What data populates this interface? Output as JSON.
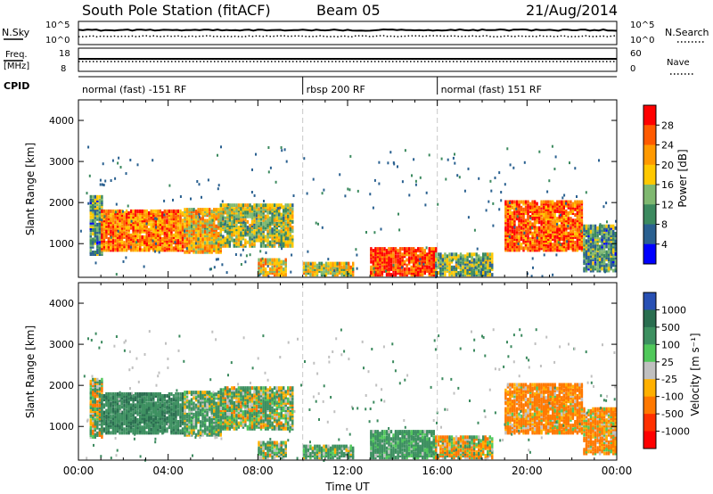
{
  "header": {
    "station": "South Pole Station (fitACF)",
    "beam": "Beam 05",
    "date": "21/Aug/2014"
  },
  "noise_panel": {
    "left_label": "N.Sky",
    "right_label": "N.Search",
    "y_ticks": [
      "10^5",
      "10^0"
    ]
  },
  "freq_panel": {
    "left_label_1": "Freq.",
    "left_label_2": "[MHz]",
    "right_label": "Nave",
    "left_ticks": [
      "18",
      "8"
    ],
    "right_ticks": [
      "60",
      "0"
    ]
  },
  "cpid": {
    "label": "CPID",
    "segments": [
      {
        "name": "normal (fast) -151 RF",
        "start_h": 0,
        "end_h": 10
      },
      {
        "name": "rbsp 200 RF",
        "start_h": 10,
        "end_h": 16
      },
      {
        "name": "normal (fast) 151 RF",
        "start_h": 16,
        "end_h": 24
      }
    ]
  },
  "power_panel": {
    "ylabel": "Slant Range [km]",
    "cbar_label": "Power [dB]",
    "cbar_ticks": [
      "28",
      "24",
      "20",
      "16",
      "12",
      "8",
      "4"
    ],
    "cbar_colors": [
      "#ff0000",
      "#ff5a00",
      "#ff9900",
      "#ffc800",
      "#7fb870",
      "#3c8a5f",
      "#2a6090",
      "#0000ff"
    ]
  },
  "velocity_panel": {
    "ylabel": "Slant Range [km]",
    "cbar_label": "Velocity [m s⁻¹]",
    "cbar_ticks": [
      "1000",
      "500",
      "100",
      "25",
      "-25",
      "-100",
      "-500",
      "-1000"
    ],
    "cbar_colors": [
      "#2850b4",
      "#2a6e50",
      "#3d9060",
      "#50c85a",
      "#c0c0c0",
      "#ffb000",
      "#ff7800",
      "#ff3000",
      "#ff0000"
    ]
  },
  "x_axis": {
    "label": "Time UT",
    "ticks": [
      "00:00",
      "04:00",
      "08:00",
      "12:00",
      "16:00",
      "20:00",
      "00:00"
    ]
  },
  "y_axis_ticks": [
    "4000",
    "3000",
    "2000",
    "1000"
  ],
  "chart_data": {
    "type": "heatmap",
    "x_range_hours": [
      0,
      24
    ],
    "y_range_km": [
      180,
      4500
    ],
    "power_range_db": [
      0,
      30
    ],
    "velocity_range_ms": [
      -1000,
      1000
    ],
    "power_echo_regions": [
      {
        "t0": 0.5,
        "t1": 1.0,
        "r0": 700,
        "r1": 2100,
        "p": 10,
        "v": 50
      },
      {
        "t0": 1.0,
        "t1": 4.7,
        "r0": 800,
        "r1": 1750,
        "p": 22,
        "v": 400
      },
      {
        "t0": 4.7,
        "t1": 6.3,
        "r0": 750,
        "r1": 1800,
        "p": 18,
        "v": 150
      },
      {
        "t0": 6.3,
        "t1": 9.5,
        "r0": 900,
        "r1": 1900,
        "p": 14,
        "v": 100
      },
      {
        "t0": 8.0,
        "t1": 9.2,
        "r0": 200,
        "r1": 600,
        "p": 18,
        "v": 120
      },
      {
        "t0": 10.0,
        "t1": 12.2,
        "r0": 200,
        "r1": 500,
        "p": 16,
        "v": 150
      },
      {
        "t0": 13.0,
        "t1": 15.9,
        "r0": 200,
        "r1": 850,
        "p": 26,
        "v": 250
      },
      {
        "t0": 15.9,
        "t1": 18.5,
        "r0": 200,
        "r1": 700,
        "p": 12,
        "v": -60
      },
      {
        "t0": 19.0,
        "t1": 22.5,
        "r0": 800,
        "r1": 2000,
        "p": 24,
        "v": -200
      },
      {
        "t0": 22.5,
        "t1": 24.0,
        "r0": 300,
        "r1": 1400,
        "p": 10,
        "v": -150
      }
    ]
  }
}
